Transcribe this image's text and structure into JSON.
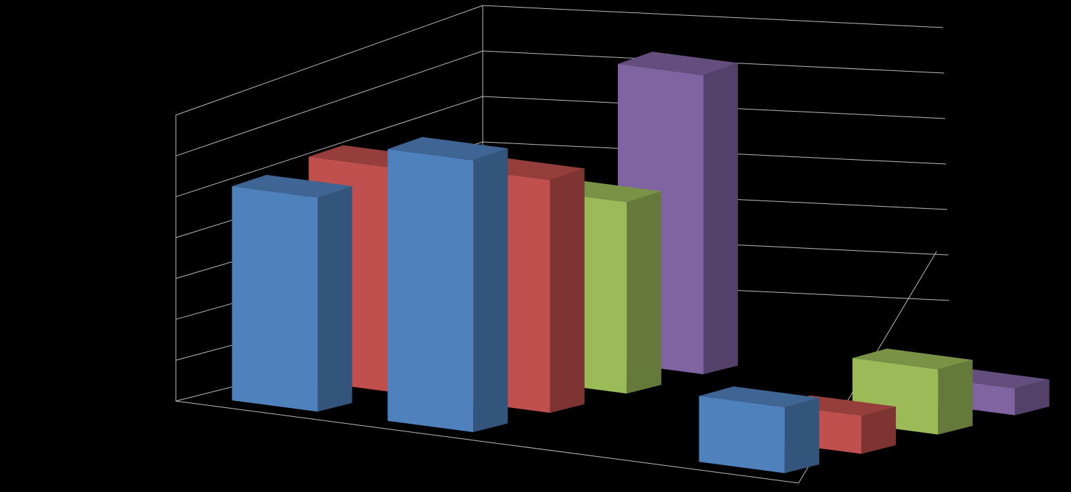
{
  "chart_data": {
    "type": "bar",
    "subtype": "3d-column",
    "categories": [
      "",
      "",
      "",
      ""
    ],
    "series": [
      {
        "values": [
          5.2,
          6.6,
          0,
          1.6
        ],
        "color": "#4f81bd"
      },
      {
        "values": [
          5.3,
          5.5,
          0,
          0.9
        ],
        "color": "#c0504d"
      },
      {
        "values": [
          4.5,
          4.4,
          0,
          1.5
        ],
        "color": "#9bbb59"
      },
      {
        "values": [
          3.4,
          6.7,
          0,
          0.6
        ],
        "color": "#8064a2"
      }
    ],
    "ylim": [
      0,
      7
    ],
    "grid": true,
    "legend": "none",
    "background": "#000000",
    "gridline_color": "#bfbfbf"
  }
}
